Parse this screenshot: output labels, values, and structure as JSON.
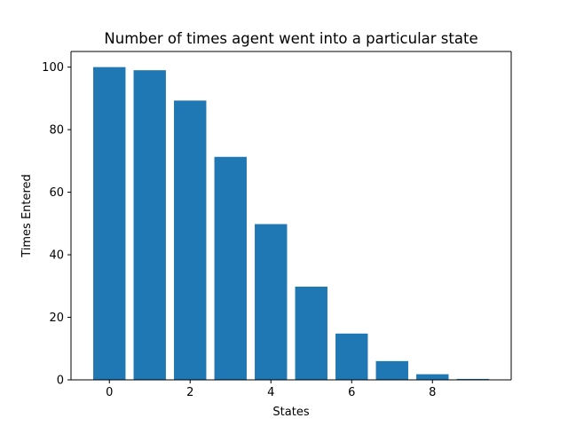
{
  "colors": {
    "bar": "#1f77b4",
    "axis": "#000000",
    "background": "#ffffff"
  },
  "chart_data": {
    "type": "bar",
    "title": "Number of times agent went into a particular state",
    "xlabel": "States",
    "ylabel": "Times Entered",
    "x": [
      0,
      1,
      2,
      3,
      4,
      5,
      6,
      7,
      8,
      9
    ],
    "values": [
      100,
      99,
      89.3,
      71.3,
      49.8,
      29.8,
      14.8,
      6,
      1.8,
      0.3
    ],
    "xlim": [
      -0.95,
      9.95
    ],
    "ylim": [
      0,
      105
    ],
    "xticks": [
      0,
      2,
      4,
      6,
      8
    ],
    "xtick_labels": [
      "0",
      "2",
      "4",
      "6",
      "8"
    ],
    "yticks": [
      0,
      20,
      40,
      60,
      80,
      100
    ],
    "ytick_labels": [
      "0",
      "20",
      "40",
      "60",
      "80",
      "100"
    ],
    "grid": false,
    "legend": "none"
  }
}
